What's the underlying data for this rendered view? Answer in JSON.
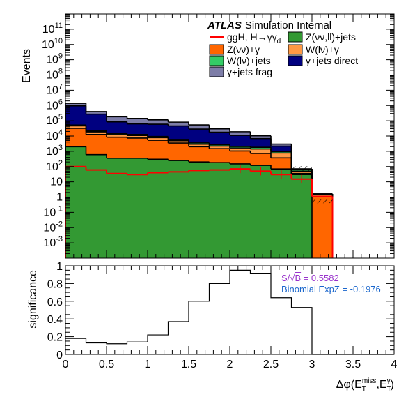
{
  "chart_data": [
    {
      "type": "bar",
      "stacked": true,
      "ylabel": "Events",
      "yscale": "log",
      "ylim": [
        0.0001,
        1000000000000
      ],
      "xlim": [
        0,
        4
      ],
      "bin_width": 0.25,
      "x_bin_edges": [
        0,
        0.25,
        0.5,
        0.75,
        1,
        1.25,
        1.5,
        1.75,
        2,
        2.25,
        2.5,
        2.75,
        3,
        3.25,
        3.5,
        3.75,
        4
      ],
      "y_ticks": [
        {
          "value": 0.001,
          "base": "10",
          "exp": "-3"
        },
        {
          "value": 0.01,
          "base": "10",
          "exp": "-2"
        },
        {
          "value": 0.1,
          "base": "10",
          "exp": "-1"
        },
        {
          "value": 1,
          "base": "1",
          "exp": ""
        },
        {
          "value": 10,
          "base": "10",
          "exp": ""
        },
        {
          "value": 100,
          "base": "10",
          "exp": "2"
        },
        {
          "value": 1000,
          "base": "10",
          "exp": "3"
        },
        {
          "value": 10000,
          "base": "10",
          "exp": "4"
        },
        {
          "value": 100000,
          "base": "10",
          "exp": "5"
        },
        {
          "value": 1000000,
          "base": "10",
          "exp": "6"
        },
        {
          "value": 10000000,
          "base": "10",
          "exp": "7"
        },
        {
          "value": 100000000,
          "base": "10",
          "exp": "8"
        },
        {
          "value": 1000000000,
          "base": "10",
          "exp": "9"
        },
        {
          "value": 10000000000,
          "base": "10",
          "exp": "10"
        },
        {
          "value": 100000000000,
          "base": "10",
          "exp": "11"
        }
      ],
      "atlas_label": {
        "bold": "ATLAS",
        "text": "Simulation Internal"
      },
      "legend": {
        "placement": "top-right",
        "columns": 2
      },
      "stack_order": [
        "Z(ll)+jets",
        "Z(vv)+gamma",
        "W(lv)+gamma",
        "W(lv)+jets",
        "gamma+jets direct",
        "gamma+jets frag"
      ],
      "series": [
        {
          "key": "Z(ll)+jets",
          "label": "Z(νν,ll)+jets",
          "color": "#339933",
          "values": [
            2000,
            600,
            350,
            350,
            300,
            250,
            200,
            180,
            150,
            120,
            70,
            30,
            0,
            0,
            0,
            0
          ]
        },
        {
          "key": "Z(vv)+gamma",
          "label": "Z(νν)+γ",
          "color": "#ff6600",
          "values": [
            30000,
            12000,
            8000,
            7000,
            5000,
            3200,
            1800,
            1300,
            900,
            600,
            300,
            5,
            1.1,
            0,
            0,
            0
          ]
        },
        {
          "key": "W(lv)+gamma",
          "label": "W(lν)+γ",
          "color": "#ff9944",
          "values": [
            14000,
            6000,
            4000,
            3500,
            2500,
            1500,
            900,
            700,
            600,
            700,
            400,
            15,
            0.5,
            0,
            0,
            0
          ]
        },
        {
          "key": "W(lv)+jets",
          "label": "W(lν)+jets",
          "color": "#33cc66",
          "values": [
            6000,
            3000,
            2000,
            1800,
            1500,
            1000,
            600,
            500,
            400,
            400,
            200,
            20,
            0,
            0,
            0,
            0
          ]
        },
        {
          "key": "gamma+jets direct",
          "label": "γ+jets direct",
          "color": "#000080",
          "values": [
            900000,
            250000,
            70000,
            50000,
            50000,
            40000,
            25000,
            15000,
            9000,
            5000,
            1200,
            0,
            0,
            0,
            0,
            0
          ]
        },
        {
          "key": "gamma+jets frag",
          "label": "γ+jets frag",
          "color": "#7d7da8",
          "values": [
            450000,
            130000,
            100000,
            80000,
            55000,
            35000,
            25000,
            12000,
            8000,
            3500,
            800,
            0,
            0,
            0,
            0,
            0
          ]
        }
      ],
      "signal": {
        "key": "ggH",
        "label": "ggH, H→γγ",
        "label_sub": "d",
        "color": "#ff0000",
        "values": [
          100,
          60,
          35,
          30,
          40,
          45,
          55,
          60,
          70,
          50,
          30,
          15,
          1.1,
          0,
          0,
          0
        ]
      },
      "total_markers": [
        {
          "x": 3.125,
          "y": 0.4,
          "style": "hatched"
        }
      ]
    },
    {
      "type": "line",
      "step": true,
      "xlabel": "Δφ(E_T^miss, E_T^γ)",
      "xlabel_parts": {
        "main": "Δφ(E",
        "sub1": "T",
        "sup1": "miss",
        "mid": ",E",
        "sub2": "T",
        "sup2": "γ",
        "end": ")"
      },
      "ylabel": "significance",
      "xlim": [
        0,
        4
      ],
      "ylim": [
        0,
        1
      ],
      "x_ticks": [
        {
          "value": 0,
          "label": "0"
        },
        {
          "value": 0.5,
          "label": "0.5"
        },
        {
          "value": 1,
          "label": "1"
        },
        {
          "value": 1.5,
          "label": "1.5"
        },
        {
          "value": 2,
          "label": "2"
        },
        {
          "value": 2.5,
          "label": "2.5"
        },
        {
          "value": 3,
          "label": "3"
        },
        {
          "value": 3.5,
          "label": "3.5"
        },
        {
          "value": 4,
          "label": "4"
        }
      ],
      "y_ticks": [
        {
          "value": 0,
          "label": "0"
        },
        {
          "value": 0.2,
          "label": "0.2"
        },
        {
          "value": 0.4,
          "label": "0.4"
        },
        {
          "value": 0.6,
          "label": "0.6"
        },
        {
          "value": 0.8,
          "label": "0.8"
        },
        {
          "value": 1,
          "label": "1"
        }
      ],
      "x_bin_edges": [
        0,
        0.25,
        0.5,
        0.75,
        1,
        1.25,
        1.5,
        1.75,
        2,
        2.25,
        2.5,
        2.75,
        3,
        3.25,
        3.5,
        3.75,
        4
      ],
      "values": [
        0.18,
        0.13,
        0.12,
        0.14,
        0.22,
        0.37,
        0.6,
        0.8,
        0.95,
        0.91,
        0.64,
        0.53,
        0,
        0,
        0,
        0
      ],
      "line_color": "#000000",
      "annotations": [
        {
          "pre": "S/",
          "sqrt": "√",
          "over": "B",
          "post": " = 0.5582",
          "color": "#9933cc"
        },
        {
          "text": "Binomial ExpZ = -0.1976",
          "color": "#1a66cc"
        }
      ]
    }
  ]
}
